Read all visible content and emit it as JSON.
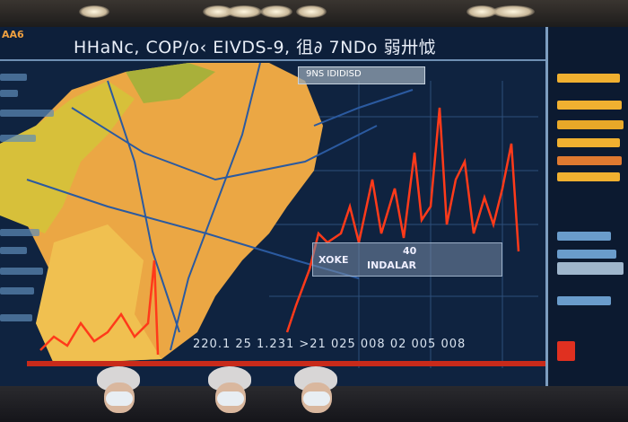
{
  "screen": {
    "corner_label": "AA6",
    "title": "HHaNc, COP/o‹ EIVDS-9, 徂∂ 7NDo 弱卅怴",
    "map_label": "9NS IDIDISD",
    "info_box": {
      "label_left": "XOKE",
      "label_value": "40",
      "label_main": "INDALAR"
    },
    "axis_readout": "220.1 25 1.231 >21 025 008 02 005 008"
  },
  "colors": {
    "screen_bg": "#0f2340",
    "map_yellow": "#e8b040",
    "map_orange": "#f08a30",
    "line_red": "#ff3a1a",
    "side_bars": "#f0b030"
  }
}
